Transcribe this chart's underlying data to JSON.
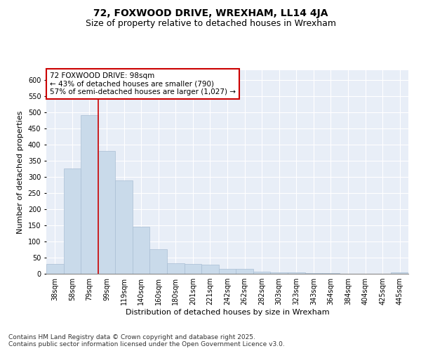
{
  "title": "72, FOXWOOD DRIVE, WREXHAM, LL14 4JA",
  "subtitle": "Size of property relative to detached houses in Wrexham",
  "xlabel": "Distribution of detached houses by size in Wrexham",
  "ylabel": "Number of detached properties",
  "categories": [
    "38sqm",
    "58sqm",
    "79sqm",
    "99sqm",
    "119sqm",
    "140sqm",
    "160sqm",
    "180sqm",
    "201sqm",
    "221sqm",
    "242sqm",
    "262sqm",
    "282sqm",
    "303sqm",
    "323sqm",
    "343sqm",
    "364sqm",
    "384sqm",
    "404sqm",
    "425sqm",
    "445sqm"
  ],
  "values": [
    30,
    325,
    490,
    380,
    290,
    145,
    77,
    32,
    30,
    28,
    15,
    15,
    7,
    5,
    4,
    3,
    2,
    1,
    1,
    1,
    4
  ],
  "bar_color": "#c9daea",
  "bar_edge_color": "#aabfd4",
  "vline_x": 2.5,
  "vline_color": "#cc0000",
  "annotation_text": "72 FOXWOOD DRIVE: 98sqm\n← 43% of detached houses are smaller (790)\n57% of semi-detached houses are larger (1,027) →",
  "annotation_box_color": "#cc0000",
  "ylim": [
    0,
    630
  ],
  "yticks": [
    0,
    50,
    100,
    150,
    200,
    250,
    300,
    350,
    400,
    450,
    500,
    550,
    600
  ],
  "background_color": "#e8eef7",
  "footnote": "Contains HM Land Registry data © Crown copyright and database right 2025.\nContains public sector information licensed under the Open Government Licence v3.0.",
  "title_fontsize": 10,
  "subtitle_fontsize": 9,
  "xlabel_fontsize": 8,
  "ylabel_fontsize": 8,
  "tick_fontsize": 7,
  "annotation_fontsize": 7.5,
  "footnote_fontsize": 6.5
}
